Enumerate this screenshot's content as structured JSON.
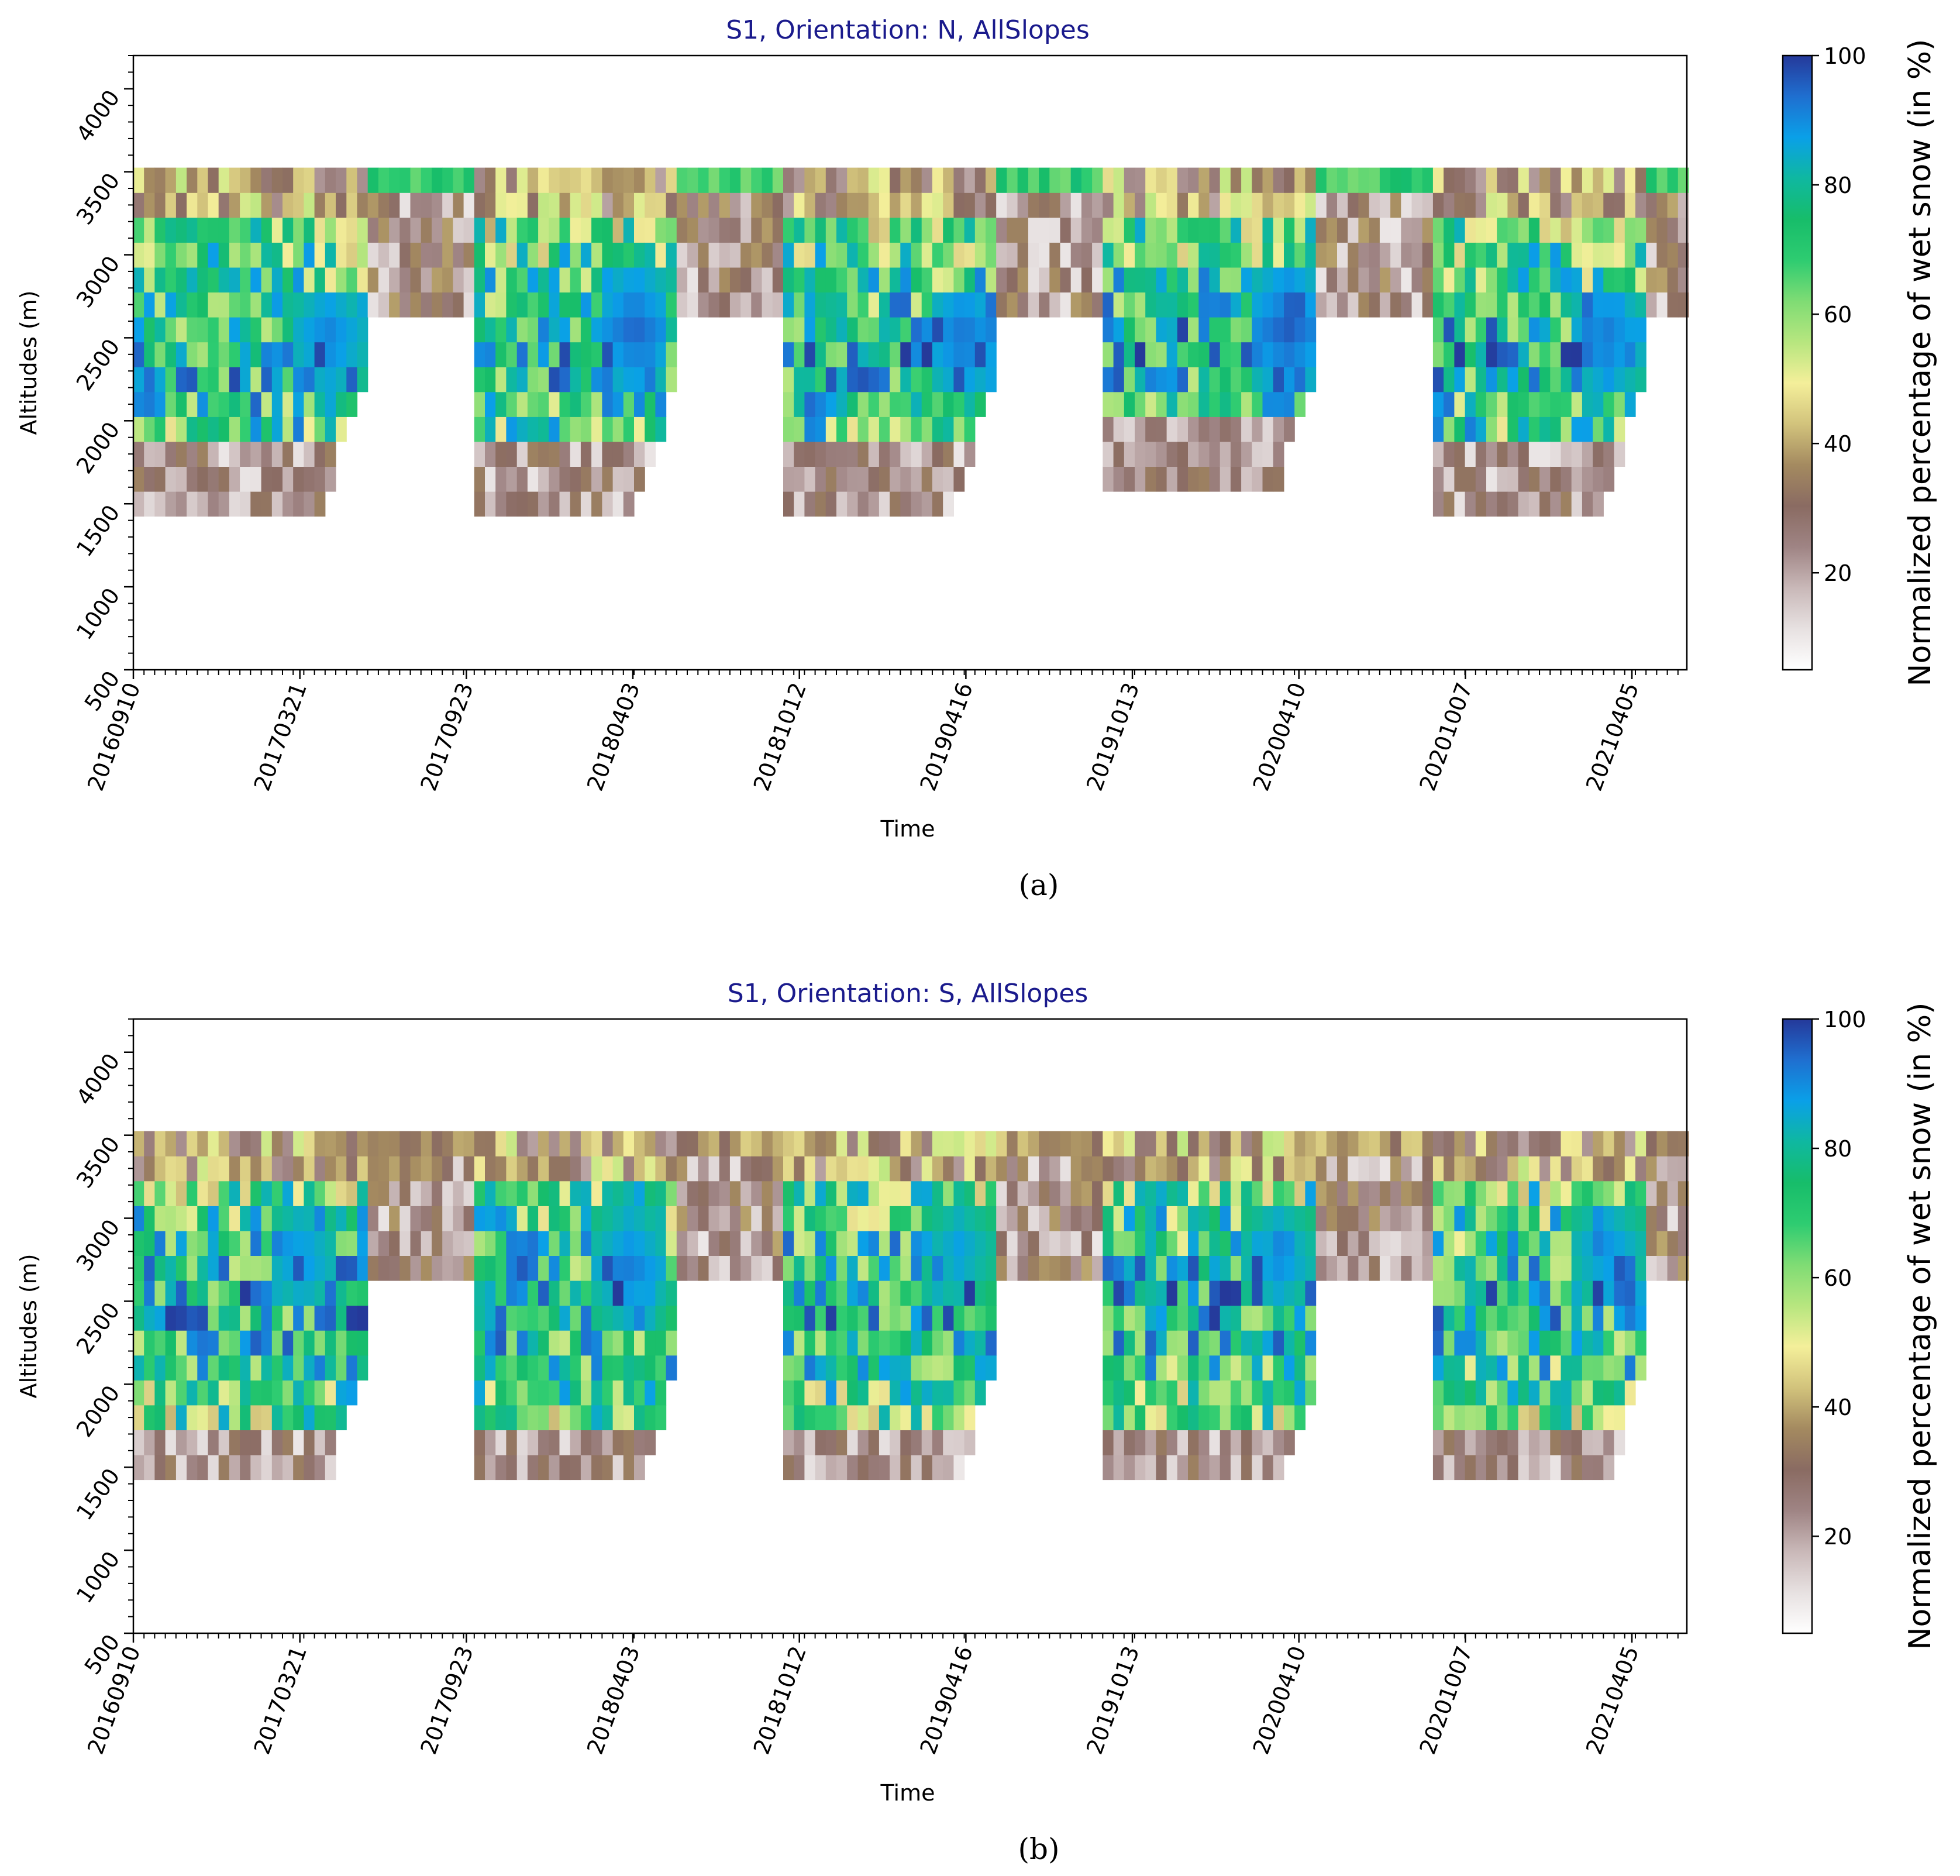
{
  "figure": {
    "colors": {
      "title": "#1a1a8c",
      "axis": "#000000",
      "background": "#ffffff",
      "colormap": [
        "#ffffff",
        "#e7e1e1",
        "#c9b8b8",
        "#9f8484",
        "#8a6b62",
        "#a48a60",
        "#d2c37c",
        "#f4ef9a",
        "#b7e67f",
        "#7fdc74",
        "#2ecc71",
        "#17bd6a",
        "#0fb8a0",
        "#0aa0e8",
        "#1f6fd0",
        "#25399a"
      ]
    },
    "colorbar": {
      "label": "Normalized percentage of wet snow (in %)",
      "vmin": 5,
      "vmax": 100,
      "ticks": [
        20,
        40,
        60,
        80,
        100
      ]
    }
  },
  "chart_data": [
    {
      "type": "heatmap",
      "panel_label": "(a)",
      "title": "S1, Orientation: N, AllSlopes",
      "xlabel": "Time",
      "ylabel": "Altitudes (m)",
      "ylim": [
        500,
        4200
      ],
      "yticks": [
        500,
        1000,
        1500,
        2000,
        2500,
        3000,
        3500,
        4000
      ],
      "x_tick_labels": [
        "20160910",
        "20170321",
        "20170923",
        "20180403",
        "20181012",
        "20190416",
        "20191013",
        "20200410",
        "20201007",
        "20210405"
      ],
      "x_range_days": [
        0,
        1750
      ],
      "altitude_bins": [
        1500,
        1650,
        1800,
        1950,
        2100,
        2250,
        2400,
        2550,
        2700,
        2850,
        3000,
        3150,
        3300,
        3450
      ],
      "seasons": [
        {
          "start_day": 0,
          "end_day": 260,
          "min_altitude": 1500,
          "peak_day": 220,
          "peak_altitude": 2500,
          "peak_value": 92
        },
        {
          "start_day": 380,
          "end_day": 610,
          "min_altitude": 1500,
          "peak_day": 565,
          "peak_altitude": 2550,
          "peak_value": 95
        },
        {
          "start_day": 730,
          "end_day": 970,
          "min_altitude": 1500,
          "peak_day": 935,
          "peak_altitude": 2500,
          "peak_value": 94
        },
        {
          "start_day": 1095,
          "end_day": 1335,
          "min_altitude": 1650,
          "peak_day": 1300,
          "peak_altitude": 2550,
          "peak_value": 96
        },
        {
          "start_day": 1460,
          "end_day": 1700,
          "min_altitude": 1500,
          "peak_day": 1660,
          "peak_altitude": 2500,
          "peak_value": 93
        }
      ],
      "summer_top_band": {
        "altitude": 3450,
        "value": 72
      }
    },
    {
      "type": "heatmap",
      "panel_label": "(b)",
      "title": "S1, Orientation: S, AllSlopes",
      "xlabel": "Time",
      "ylabel": "Altitudes (m)",
      "ylim": [
        500,
        4200
      ],
      "yticks": [
        500,
        1000,
        1500,
        2000,
        2500,
        3000,
        3500,
        4000
      ],
      "x_tick_labels": [
        "20160910",
        "20170321",
        "20170923",
        "20180403",
        "20181012",
        "20190416",
        "20191013",
        "20200410",
        "20201007",
        "20210405"
      ],
      "x_range_days": [
        0,
        1750
      ],
      "altitude_bins": [
        1500,
        1650,
        1800,
        1950,
        2100,
        2250,
        2400,
        2550,
        2700,
        2850,
        3000,
        3150,
        3300,
        3450
      ],
      "seasons": [
        {
          "start_day": 0,
          "end_day": 260,
          "min_altitude": 1350,
          "peak_day": 190,
          "peak_altitude": 2750,
          "peak_value": 90
        },
        {
          "start_day": 380,
          "end_day": 610,
          "min_altitude": 1350,
          "peak_day": 560,
          "peak_altitude": 2700,
          "peak_value": 92
        },
        {
          "start_day": 730,
          "end_day": 970,
          "min_altitude": 1350,
          "peak_day": 930,
          "peak_altitude": 2800,
          "peak_value": 88
        },
        {
          "start_day": 1095,
          "end_day": 1335,
          "min_altitude": 1350,
          "peak_day": 1290,
          "peak_altitude": 2750,
          "peak_value": 90
        },
        {
          "start_day": 1460,
          "end_day": 1700,
          "min_altitude": 1350,
          "peak_day": 1660,
          "peak_altitude": 2800,
          "peak_value": 90
        }
      ],
      "summer_top_band": {
        "altitude": 3450,
        "value": 40
      }
    }
  ]
}
